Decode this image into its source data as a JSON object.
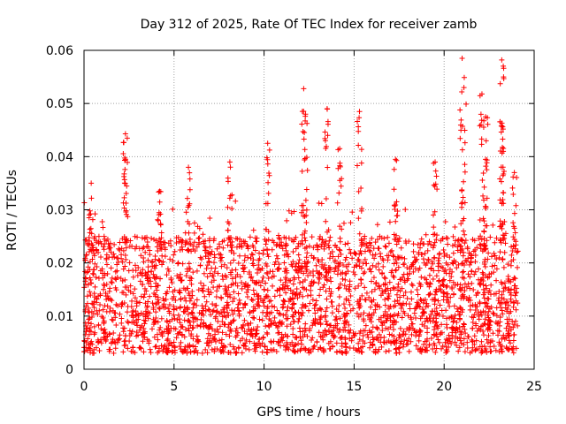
{
  "chart_data": {
    "type": "scatter",
    "title": "Day 312 of 2025, Rate Of TEC Index for receiver zamb",
    "xlabel": "GPS time / hours",
    "ylabel": "ROTI / TECUs",
    "xlim": [
      0,
      25
    ],
    "ylim": [
      0,
      0.06
    ],
    "xticks": [
      0,
      5,
      10,
      15,
      20,
      25
    ],
    "yticks": [
      0,
      0.01,
      0.02,
      0.03,
      0.04,
      0.05,
      0.06
    ],
    "xtick_labels": [
      "0",
      "5",
      "10",
      "15",
      "20",
      "25"
    ],
    "ytick_labels": [
      "0",
      "0.01",
      "0.02",
      "0.03",
      "0.04",
      "0.05",
      "0.06"
    ],
    "grid": true,
    "legend": "none",
    "marker": "plus",
    "colors": {
      "series": "#ff0000",
      "grid": "#a0a0a0",
      "axis": "#000000"
    },
    "series": [
      {
        "data_range_hours": [
          0,
          24.1
        ],
        "typical_range": [
          0.003,
          0.025
        ],
        "points": [
          {
            "x": 0.4,
            "y": 0.035
          },
          {
            "x": 2.3,
            "y": 0.0443
          },
          {
            "x": 2.3,
            "y": 0.0395
          },
          {
            "x": 4.2,
            "y": 0.0335
          },
          {
            "x": 5.8,
            "y": 0.038
          },
          {
            "x": 8.1,
            "y": 0.039
          },
          {
            "x": 10.2,
            "y": 0.0425
          },
          {
            "x": 12.2,
            "y": 0.0528
          },
          {
            "x": 12.3,
            "y": 0.048
          },
          {
            "x": 13.5,
            "y": 0.049
          },
          {
            "x": 14.2,
            "y": 0.0415
          },
          {
            "x": 15.3,
            "y": 0.0485
          },
          {
            "x": 17.3,
            "y": 0.0395
          },
          {
            "x": 19.5,
            "y": 0.039
          },
          {
            "x": 21.0,
            "y": 0.0585
          },
          {
            "x": 21.1,
            "y": 0.053
          },
          {
            "x": 22.1,
            "y": 0.0518
          },
          {
            "x": 22.3,
            "y": 0.0475
          },
          {
            "x": 22.3,
            "y": 0.0395
          },
          {
            "x": 23.2,
            "y": 0.0582
          },
          {
            "x": 23.3,
            "y": 0.055
          },
          {
            "x": 23.2,
            "y": 0.0458
          },
          {
            "x": 23.9,
            "y": 0.037
          }
        ]
      }
    ]
  }
}
